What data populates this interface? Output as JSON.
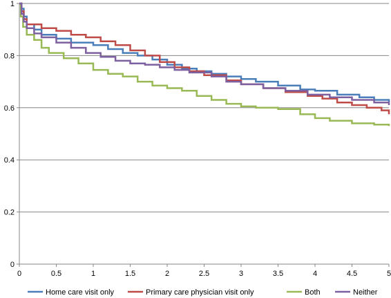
{
  "chart_data": {
    "type": "line",
    "title": "",
    "xlabel": "",
    "ylabel": "",
    "xlim": [
      0,
      5
    ],
    "ylim": [
      0,
      1
    ],
    "x_ticks": [
      "0",
      "0.5",
      "1",
      "1.5",
      "2",
      "2.5",
      "3",
      "3.5",
      "4",
      "4.5",
      "5"
    ],
    "y_ticks": [
      "0",
      "0.2",
      "0.4",
      "0.6",
      "0.8",
      "1"
    ],
    "grid": "horizontal",
    "legend_position": "bottom",
    "series": [
      {
        "name": "Home care visit only",
        "color": "#4a7ebb",
        "points": [
          [
            0,
            1
          ],
          [
            0.03,
            0.98
          ],
          [
            0.06,
            0.95
          ],
          [
            0.1,
            0.92
          ],
          [
            0.2,
            0.9
          ],
          [
            0.3,
            0.88
          ],
          [
            0.5,
            0.865
          ],
          [
            0.7,
            0.85
          ],
          [
            1,
            0.84
          ],
          [
            1.2,
            0.825
          ],
          [
            1.4,
            0.81
          ],
          [
            1.6,
            0.8
          ],
          [
            1.8,
            0.785
          ],
          [
            2,
            0.765
          ],
          [
            2.2,
            0.75
          ],
          [
            2.4,
            0.74
          ],
          [
            2.6,
            0.73
          ],
          [
            2.8,
            0.72
          ],
          [
            3,
            0.71
          ],
          [
            3.2,
            0.7
          ],
          [
            3.5,
            0.685
          ],
          [
            3.8,
            0.67
          ],
          [
            4,
            0.665
          ],
          [
            4.3,
            0.65
          ],
          [
            4.6,
            0.64
          ],
          [
            4.8,
            0.63
          ],
          [
            5,
            0.62
          ]
        ]
      },
      {
        "name": "Primary care physician visit only",
        "color": "#be4b48",
        "points": [
          [
            0,
            1
          ],
          [
            0.03,
            0.97
          ],
          [
            0.06,
            0.94
          ],
          [
            0.1,
            0.92
          ],
          [
            0.3,
            0.905
          ],
          [
            0.5,
            0.895
          ],
          [
            0.7,
            0.88
          ],
          [
            0.9,
            0.87
          ],
          [
            1.1,
            0.855
          ],
          [
            1.3,
            0.84
          ],
          [
            1.5,
            0.82
          ],
          [
            1.7,
            0.8
          ],
          [
            1.9,
            0.775
          ],
          [
            2.1,
            0.755
          ],
          [
            2.3,
            0.74
          ],
          [
            2.5,
            0.725
          ],
          [
            2.8,
            0.705
          ],
          [
            3,
            0.69
          ],
          [
            3.3,
            0.675
          ],
          [
            3.6,
            0.66
          ],
          [
            3.9,
            0.645
          ],
          [
            4.1,
            0.635
          ],
          [
            4.3,
            0.62
          ],
          [
            4.5,
            0.61
          ],
          [
            4.7,
            0.6
          ],
          [
            4.9,
            0.59
          ],
          [
            5,
            0.575
          ]
        ]
      },
      {
        "name": "Both",
        "color": "#98b954",
        "points": [
          [
            0,
            1
          ],
          [
            0.02,
            0.95
          ],
          [
            0.05,
            0.91
          ],
          [
            0.1,
            0.88
          ],
          [
            0.2,
            0.86
          ],
          [
            0.3,
            0.83
          ],
          [
            0.4,
            0.81
          ],
          [
            0.6,
            0.79
          ],
          [
            0.8,
            0.77
          ],
          [
            1,
            0.745
          ],
          [
            1.2,
            0.73
          ],
          [
            1.4,
            0.72
          ],
          [
            1.6,
            0.7
          ],
          [
            1.8,
            0.685
          ],
          [
            2,
            0.675
          ],
          [
            2.2,
            0.665
          ],
          [
            2.4,
            0.645
          ],
          [
            2.6,
            0.63
          ],
          [
            2.8,
            0.615
          ],
          [
            3,
            0.605
          ],
          [
            3.2,
            0.6
          ],
          [
            3.5,
            0.595
          ],
          [
            3.8,
            0.575
          ],
          [
            4,
            0.56
          ],
          [
            4.2,
            0.55
          ],
          [
            4.5,
            0.54
          ],
          [
            4.8,
            0.535
          ],
          [
            5,
            0.53
          ]
        ]
      },
      {
        "name": "Neither",
        "color": "#7d60a0",
        "points": [
          [
            0,
            1
          ],
          [
            0.03,
            0.96
          ],
          [
            0.06,
            0.93
          ],
          [
            0.1,
            0.905
          ],
          [
            0.2,
            0.885
          ],
          [
            0.3,
            0.87
          ],
          [
            0.5,
            0.85
          ],
          [
            0.7,
            0.83
          ],
          [
            0.9,
            0.81
          ],
          [
            1.1,
            0.795
          ],
          [
            1.3,
            0.78
          ],
          [
            1.5,
            0.77
          ],
          [
            1.7,
            0.765
          ],
          [
            1.9,
            0.755
          ],
          [
            2.1,
            0.745
          ],
          [
            2.3,
            0.735
          ],
          [
            2.6,
            0.72
          ],
          [
            2.8,
            0.7
          ],
          [
            3,
            0.69
          ],
          [
            3.3,
            0.675
          ],
          [
            3.6,
            0.665
          ],
          [
            3.9,
            0.65
          ],
          [
            4.2,
            0.64
          ],
          [
            4.5,
            0.63
          ],
          [
            4.8,
            0.62
          ],
          [
            5,
            0.61
          ]
        ]
      }
    ]
  }
}
